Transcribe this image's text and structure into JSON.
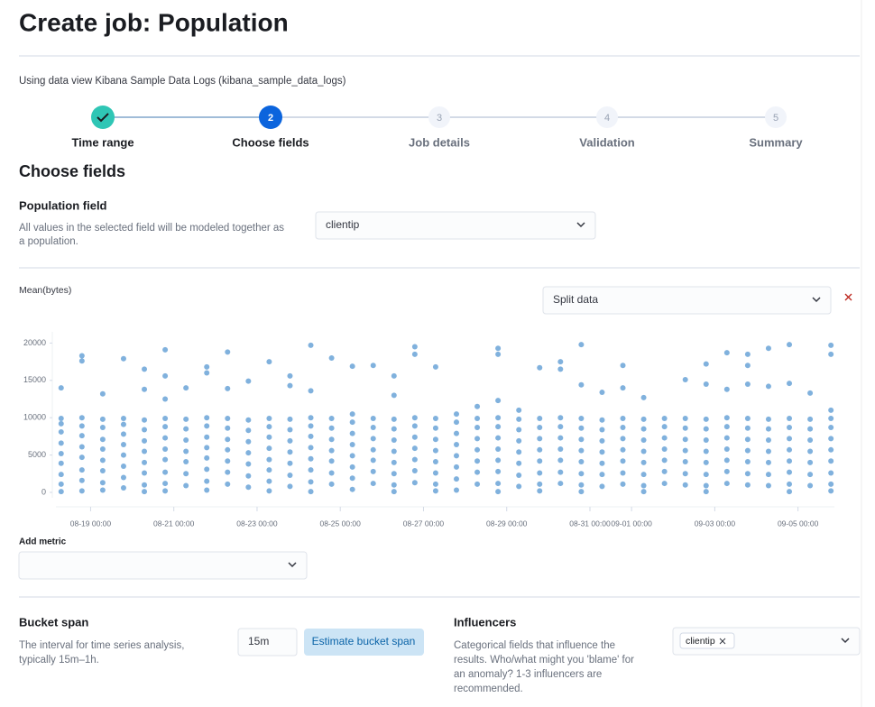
{
  "header": {
    "title": "Create job: Population",
    "data_view": "Using data view Kibana Sample Data Logs (kibana_sample_data_logs)"
  },
  "steps": [
    {
      "label": "Time range"
    },
    {
      "number": 2,
      "label": "Choose fields"
    },
    {
      "number": 3,
      "label": "Job details"
    },
    {
      "number": 4,
      "label": "Validation"
    },
    {
      "number": 5,
      "label": "Summary"
    }
  ],
  "section_title": "Choose fields",
  "population_field": {
    "label": "Population field",
    "description": [
      "All values in the selected field will be modeled together as",
      "a population."
    ],
    "value": "clientip"
  },
  "split_data": {
    "placeholder": "Split data"
  },
  "chart_data": {
    "type": "scatter",
    "title": "Mean(bytes)",
    "color": "#4a90cf",
    "ylim": [
      0,
      21500
    ],
    "yticks": [
      0,
      5000,
      10000,
      15000,
      20000
    ],
    "xlim": [
      "08-18 04:00",
      "09-05 21:00"
    ],
    "xticks": [
      "08-19 00:00",
      "08-21 00:00",
      "08-23 00:00",
      "08-25 00:00",
      "08-27 00:00",
      "08-29 00:00",
      "08-31 00:00",
      "09-01 00:00",
      "09-03 00:00",
      "09-05 00:00"
    ],
    "x": [
      "08-18 07:00",
      "08-18 19:00",
      "08-19 07:00",
      "08-19 19:00",
      "08-20 07:00",
      "08-20 19:00",
      "08-21 07:00",
      "08-21 19:00",
      "08-22 07:00",
      "08-22 19:00",
      "08-23 07:00",
      "08-23 19:00",
      "08-24 07:00",
      "08-24 19:00",
      "08-25 07:00",
      "08-25 19:00",
      "08-26 07:00",
      "08-26 19:00",
      "08-27 07:00",
      "08-27 19:00",
      "08-28 07:00",
      "08-28 19:00",
      "08-29 07:00",
      "08-29 19:00",
      "08-30 07:00",
      "08-30 19:00",
      "08-31 07:00",
      "08-31 19:00",
      "09-01 07:00",
      "09-01 19:00",
      "09-02 07:00",
      "09-02 19:00",
      "09-03 07:00",
      "09-03 19:00",
      "09-04 07:00",
      "09-04 19:00",
      "09-05 07:00",
      "09-05 19:00"
    ],
    "values": [
      [
        14000,
        9900,
        9200,
        8100,
        6600,
        5200,
        3900,
        2400,
        1100,
        100
      ],
      [
        18300,
        17600,
        10000,
        8900,
        7600,
        6100,
        4700,
        3000,
        1600,
        200
      ],
      [
        13200,
        9800,
        8700,
        7100,
        5800,
        4300,
        2900,
        1300,
        300
      ],
      [
        17900,
        9900,
        9100,
        7800,
        6400,
        5000,
        3500,
        2000,
        600
      ],
      [
        16500,
        13800,
        9700,
        8400,
        6900,
        5500,
        4000,
        2600,
        1000,
        100
      ],
      [
        19100,
        15600,
        12500,
        9900,
        8800,
        7300,
        5800,
        4400,
        2700,
        1200,
        200
      ],
      [
        14000,
        9800,
        8500,
        7000,
        5500,
        4100,
        2500,
        900
      ],
      [
        16800,
        16000,
        10000,
        8900,
        7400,
        6000,
        4600,
        3100,
        1500,
        300
      ],
      [
        18800,
        13900,
        9900,
        8600,
        7100,
        5700,
        4200,
        2700,
        1100
      ],
      [
        14900,
        9700,
        8300,
        6800,
        5300,
        3800,
        2200,
        700
      ],
      [
        17500,
        9900,
        8800,
        7400,
        5900,
        4400,
        3000,
        1500,
        200
      ],
      [
        15600,
        14300,
        9800,
        8400,
        6900,
        5400,
        3900,
        2300,
        800
      ],
      [
        19700,
        13600,
        10000,
        8900,
        7500,
        6000,
        4500,
        3000,
        1400,
        100
      ],
      [
        18000,
        9900,
        8600,
        7100,
        5600,
        4200,
        2600,
        1100
      ],
      [
        16900,
        10500,
        9400,
        7900,
        6400,
        4900,
        3400,
        1900,
        400
      ],
      [
        17000,
        9900,
        8700,
        7200,
        5700,
        4300,
        2800,
        1200
      ],
      [
        15600,
        13000,
        9800,
        8500,
        7000,
        5500,
        4000,
        2500,
        1000,
        100
      ],
      [
        19500,
        18500,
        10000,
        8900,
        7400,
        5900,
        4400,
        2900,
        1300
      ],
      [
        16800,
        9900,
        8600,
        7100,
        5600,
        4100,
        2600,
        1100,
        200
      ],
      [
        10500,
        9400,
        7900,
        6400,
        4900,
        3400,
        1800,
        300
      ],
      [
        11500,
        9900,
        8700,
        7200,
        5700,
        4200,
        2700,
        1100
      ],
      [
        19300,
        18500,
        12300,
        10000,
        8800,
        7300,
        5800,
        4300,
        2800,
        1200,
        100
      ],
      [
        11000,
        9800,
        8400,
        6900,
        5400,
        3900,
        2300,
        800
      ],
      [
        16700,
        9900,
        8700,
        7200,
        5700,
        4200,
        2600,
        1100,
        200
      ],
      [
        17500,
        16500,
        10000,
        8800,
        7300,
        5800,
        4300,
        2700,
        1200
      ],
      [
        19800,
        14400,
        9900,
        8600,
        7100,
        5600,
        4100,
        2500,
        1000,
        100
      ],
      [
        13400,
        9700,
        8400,
        6900,
        5400,
        3900,
        2400,
        800
      ],
      [
        17000,
        14000,
        9900,
        8700,
        7200,
        5700,
        4200,
        2600,
        1100
      ],
      [
        12700,
        9800,
        8500,
        7000,
        5500,
        4000,
        2400,
        900,
        100
      ],
      [
        9900,
        8800,
        7300,
        5800,
        4300,
        2800,
        1200
      ],
      [
        15100,
        9900,
        8600,
        7100,
        5600,
        4100,
        2500,
        1000
      ],
      [
        17200,
        14500,
        9800,
        8500,
        7000,
        5500,
        4000,
        2400,
        900,
        100
      ],
      [
        18700,
        13800,
        10000,
        8800,
        7300,
        5800,
        4300,
        2800,
        1200
      ],
      [
        18500,
        17000,
        14500,
        9900,
        8600,
        7100,
        5600,
        4100,
        2500,
        1000
      ],
      [
        19300,
        14200,
        9800,
        8500,
        7000,
        5500,
        4000,
        2400,
        900
      ],
      [
        19800,
        14600,
        9900,
        8700,
        7200,
        5700,
        4200,
        2700,
        1100,
        100
      ],
      [
        13300,
        9800,
        8500,
        7000,
        5500,
        4000,
        2400,
        900
      ],
      [
        19700,
        18500,
        11000,
        9900,
        8700,
        7200,
        5700,
        4200,
        2600,
        1100,
        200
      ]
    ]
  },
  "add_metric": {
    "label": "Add metric"
  },
  "bucket_span": {
    "label": "Bucket span",
    "description": [
      "The interval for time series analysis,",
      "typically 15m–1h."
    ],
    "value": "15m",
    "button": "Estimate bucket span"
  },
  "influencers": {
    "label": "Influencers",
    "description": [
      "Categorical fields that influence the",
      "results. Who/what might you 'blame' for",
      "an anomaly? 1-3 influencers are",
      "recommended."
    ],
    "chip": "clientip"
  }
}
